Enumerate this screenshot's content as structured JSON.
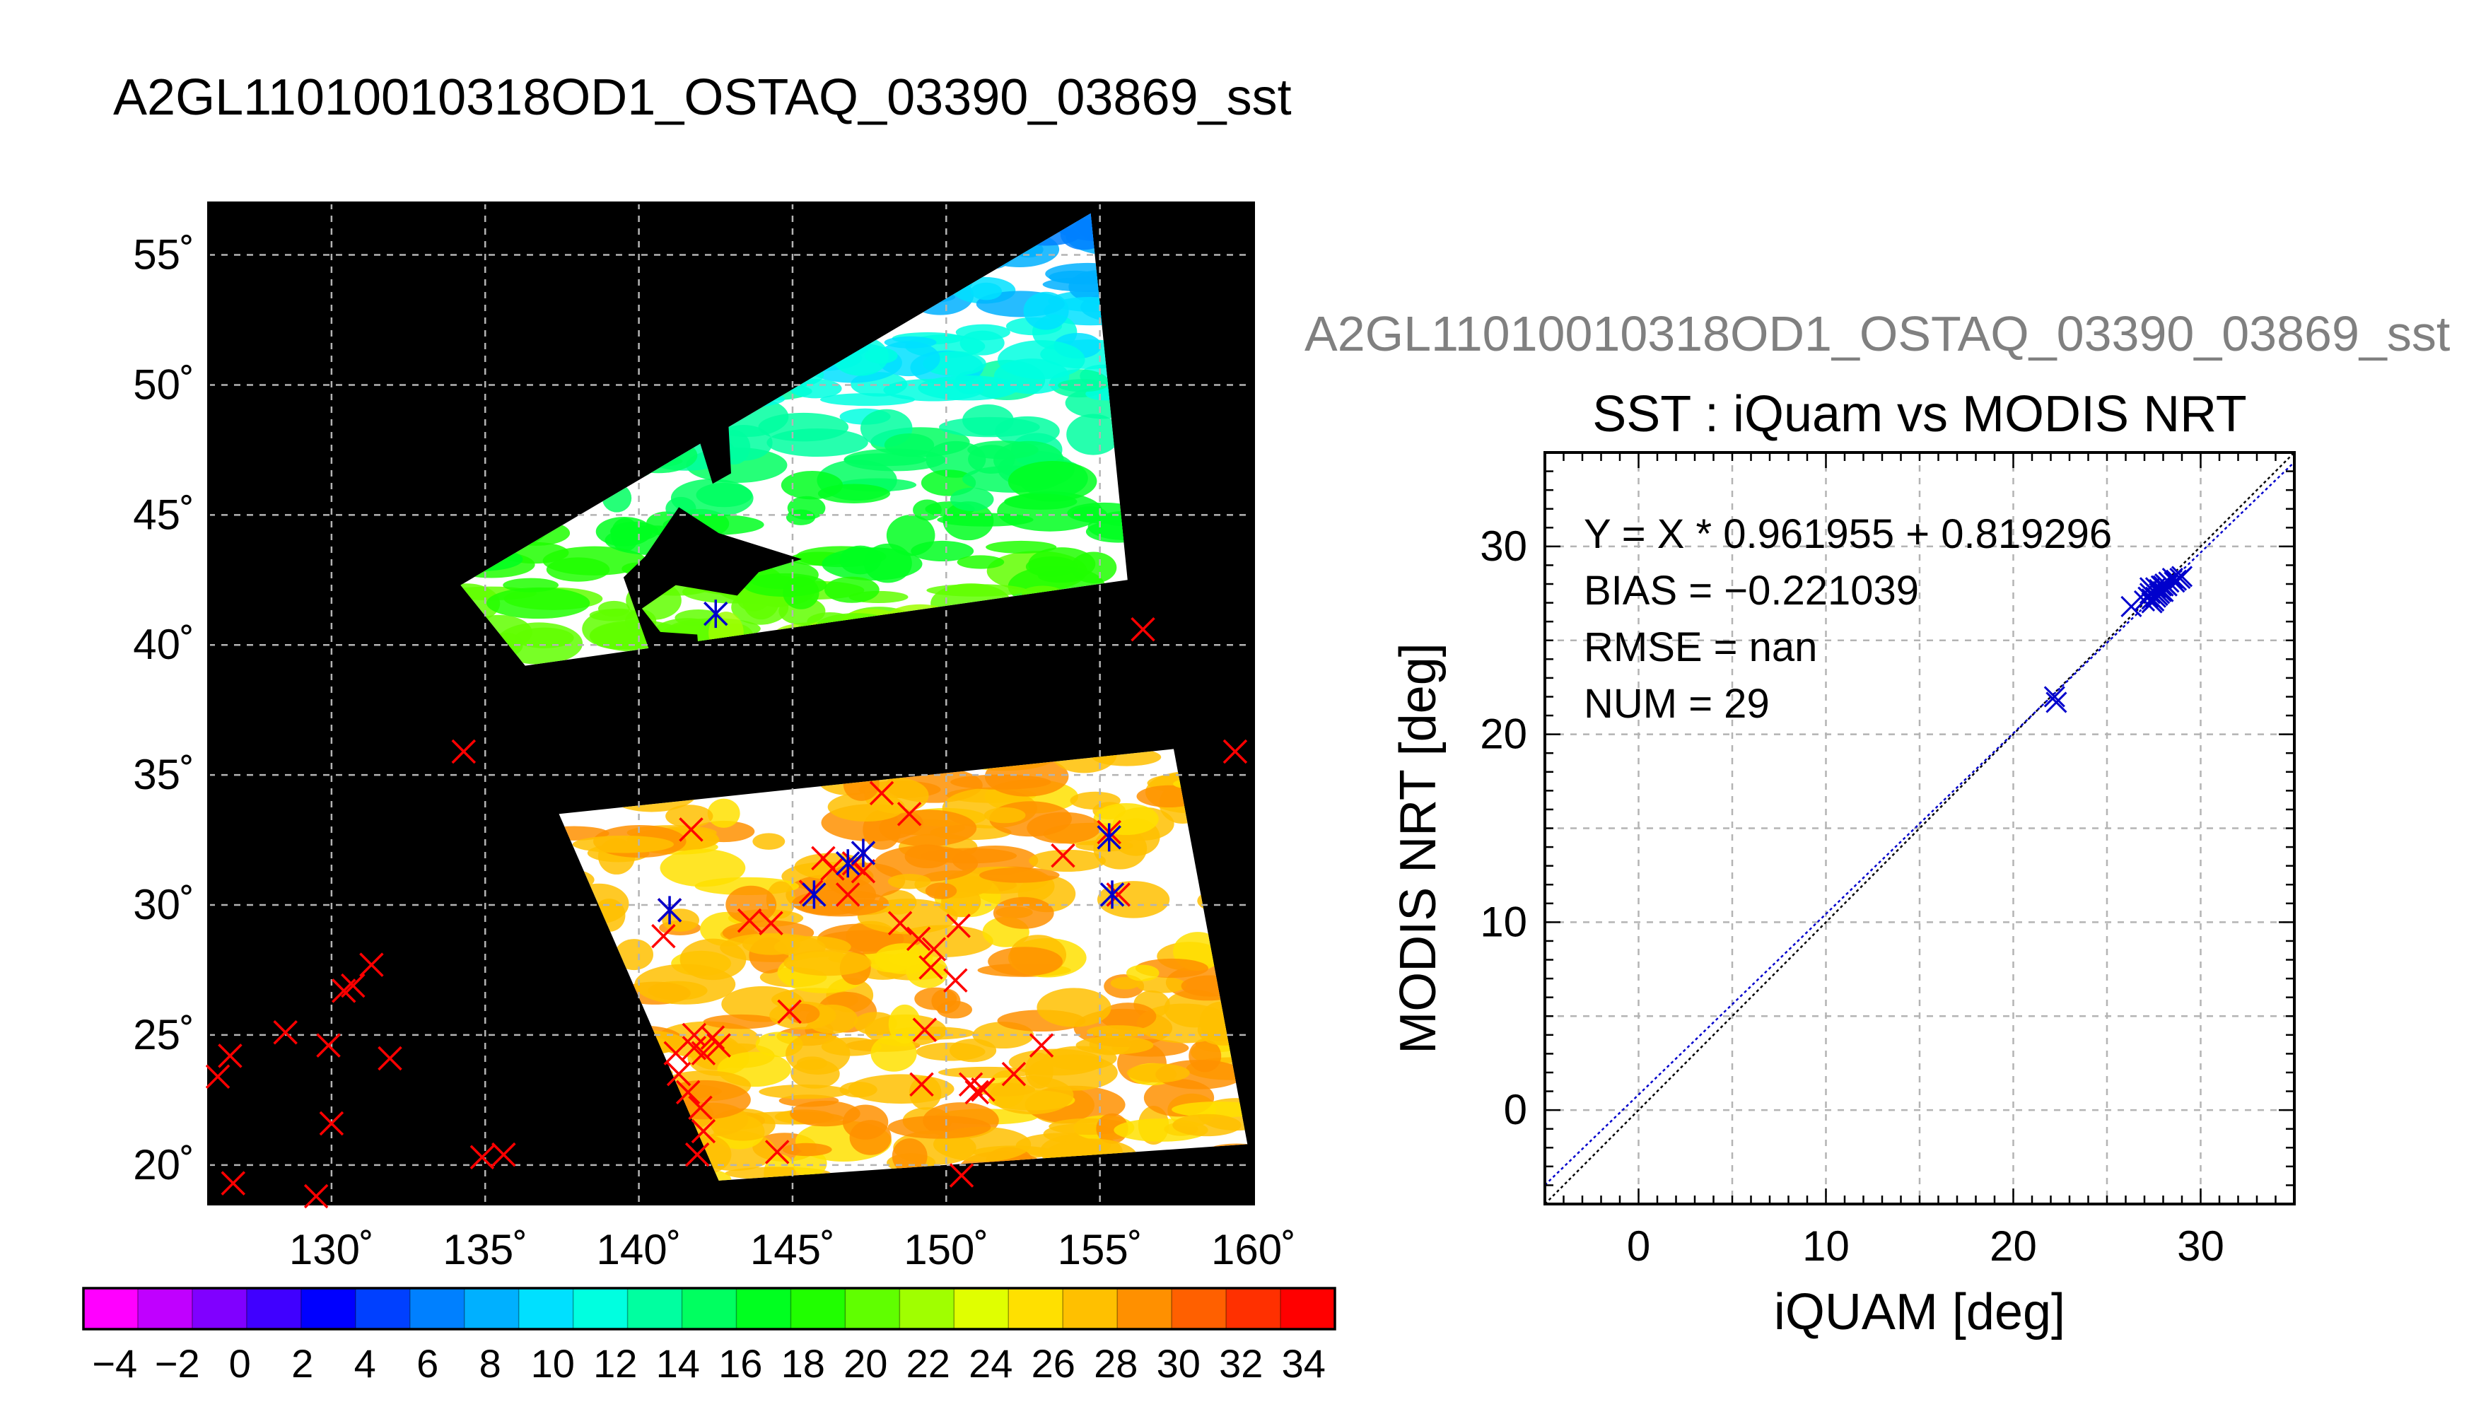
{
  "page_title": "A2GL11010010318OD1_OSTAQ_03390_03869_sst",
  "colors": {
    "frame": "#000000",
    "grid": "#b4b4b4",
    "map_background": "#000000",
    "marker_red": "#ff0000",
    "marker_blue": "#0000cc",
    "fit_line": "#0000cc",
    "identity_line": "#000000",
    "overlay_title": "#808080"
  },
  "chart_data": [
    {
      "type": "scatter",
      "subtype": "map",
      "xlim": [
        126,
        160
      ],
      "ylim": [
        18.5,
        57
      ],
      "x_ticks": [
        130,
        135,
        140,
        145,
        150,
        155,
        160
      ],
      "y_ticks": [
        20,
        25,
        30,
        35,
        40,
        45,
        50,
        55
      ],
      "x_tick_labels": [
        "130˚",
        "135˚",
        "140˚",
        "145˚",
        "150˚",
        "155˚",
        "160˚"
      ],
      "y_tick_labels": [
        "20˚",
        "25˚",
        "30˚",
        "35˚",
        "40˚",
        "45˚",
        "50˚",
        "55˚"
      ],
      "grid": true,
      "granules": [
        {
          "name": "north",
          "corners": [
            [
              134.2,
              42.3
            ],
            [
              136.3,
              39.2
            ],
            [
              155.9,
              42.5
            ],
            [
              154.7,
              56.6
            ]
          ],
          "sst_min": 6,
          "sst_max": 22
        },
        {
          "name": "south",
          "corners": [
            [
              137.4,
              33.5
            ],
            [
              142.6,
              19.4
            ],
            [
              159.8,
              20.8
            ],
            [
              157.4,
              36.0
            ]
          ],
          "sst_min": 26,
          "sst_max": 29
        }
      ],
      "markers_red_x": [
        [
          126.3,
          23.4
        ],
        [
          126.7,
          24.2
        ],
        [
          126.8,
          19.3
        ],
        [
          128.5,
          25.1
        ],
        [
          129.5,
          18.8
        ],
        [
          129.9,
          24.6
        ],
        [
          130.0,
          21.6
        ],
        [
          130.4,
          26.7
        ],
        [
          130.7,
          26.9
        ],
        [
          131.3,
          27.7
        ],
        [
          131.9,
          24.1
        ],
        [
          134.3,
          35.9
        ],
        [
          134.9,
          20.3
        ],
        [
          135.6,
          20.4
        ],
        [
          140.8,
          28.8
        ],
        [
          141.0,
          29.8
        ],
        [
          141.2,
          24.3
        ],
        [
          141.3,
          23.5
        ],
        [
          141.6,
          22.8
        ],
        [
          141.7,
          32.9
        ],
        [
          141.8,
          25.0
        ],
        [
          141.8,
          24.5
        ],
        [
          141.9,
          20.4
        ],
        [
          142.0,
          22.2
        ],
        [
          142.1,
          24.3
        ],
        [
          142.1,
          21.3
        ],
        [
          142.4,
          24.9
        ],
        [
          142.6,
          24.6
        ],
        [
          143.6,
          29.4
        ],
        [
          144.3,
          29.3
        ],
        [
          144.9,
          25.9
        ],
        [
          144.5,
          20.5
        ],
        [
          145.6,
          30.5
        ],
        [
          146.0,
          31.8
        ],
        [
          146.3,
          31.4
        ],
        [
          146.8,
          30.4
        ],
        [
          147.0,
          31.6
        ],
        [
          147.3,
          31.3
        ],
        [
          147.9,
          34.3
        ],
        [
          148.5,
          29.3
        ],
        [
          148.8,
          33.5
        ],
        [
          149.1,
          28.7
        ],
        [
          149.5,
          27.6
        ],
        [
          149.6,
          28.3
        ],
        [
          149.3,
          25.2
        ],
        [
          149.2,
          23.1
        ],
        [
          150.3,
          27.1
        ],
        [
          150.4,
          29.2
        ],
        [
          150.5,
          19.6
        ],
        [
          150.8,
          23.1
        ],
        [
          151.0,
          22.8
        ],
        [
          151.2,
          22.9
        ],
        [
          152.2,
          23.5
        ],
        [
          153.1,
          24.6
        ],
        [
          153.8,
          31.9
        ],
        [
          155.3,
          32.8
        ],
        [
          155.6,
          30.4
        ],
        [
          156.4,
          40.6
        ],
        [
          159.4,
          35.9
        ]
      ],
      "markers_blue_star": [
        [
          142.5,
          41.2
        ],
        [
          141.0,
          29.8
        ],
        [
          145.7,
          30.4
        ],
        [
          146.8,
          31.6
        ],
        [
          147.3,
          32.0
        ],
        [
          155.3,
          32.6
        ],
        [
          155.4,
          30.4
        ]
      ]
    },
    {
      "type": "colorbar",
      "range": [
        -5,
        35
      ],
      "tick_values": [
        -4,
        -2,
        0,
        2,
        4,
        6,
        8,
        10,
        12,
        14,
        16,
        18,
        20,
        22,
        24,
        26,
        28,
        30,
        32,
        34
      ],
      "tick_labels": [
        "−4",
        "−2",
        "0",
        "2",
        "4",
        "6",
        "8",
        "10",
        "12",
        "14",
        "16",
        "18",
        "20",
        "22",
        "24",
        "26",
        "28",
        "30",
        "32",
        "34"
      ],
      "colors": [
        "#ff00ff",
        "#c000ff",
        "#8000ff",
        "#4000ff",
        "#0000ff",
        "#0040ff",
        "#0080ff",
        "#00b0ff",
        "#00e0ff",
        "#00ffe0",
        "#00ffa0",
        "#00ff60",
        "#00ff20",
        "#20ff00",
        "#60ff00",
        "#a0ff00",
        "#e0ff00",
        "#ffe000",
        "#ffc000",
        "#ff9000",
        "#ff6000",
        "#ff3000",
        "#ff0000"
      ]
    },
    {
      "type": "scatter",
      "title": "SST : iQuam vs MODIS NRT",
      "overlay_title": "A2GL11010010318OD1_OSTAQ_03390_03869_sst",
      "xlabel": "iQUAM [deg]",
      "ylabel": "MODIS NRT [deg]",
      "xlim": [
        -5,
        35
      ],
      "ylim": [
        -5,
        35
      ],
      "x_ticks": [
        0,
        10,
        20,
        30
      ],
      "y_ticks": [
        0,
        10,
        20,
        30
      ],
      "minor_step": 1,
      "grid": true,
      "annotations": [
        "Y = X * 0.961955 + 0.819296",
        "BIAS = −0.221039",
        "RMSE = nan",
        "NUM = 29"
      ],
      "fit": {
        "slope": 0.961955,
        "intercept": 0.819296
      },
      "x": [
        22.2,
        22.3,
        26.3,
        27.0,
        27.2,
        27.3,
        27.4,
        27.5,
        27.6,
        27.7,
        27.8,
        27.9,
        28.0,
        28.1,
        28.3,
        28.5,
        28.7,
        28.9,
        27.4,
        27.6,
        27.8,
        28.0,
        27.3,
        27.5,
        27.7,
        27.9,
        28.2,
        28.6,
        29.0
      ],
      "y": [
        22.0,
        21.7,
        26.8,
        27.1,
        27.3,
        27.5,
        27.2,
        27.6,
        27.8,
        27.4,
        27.7,
        27.9,
        27.6,
        28.0,
        28.1,
        28.3,
        28.2,
        28.3,
        27.0,
        27.3,
        27.5,
        27.9,
        27.8,
        27.1,
        27.4,
        27.6,
        27.9,
        28.1,
        28.4
      ]
    }
  ]
}
